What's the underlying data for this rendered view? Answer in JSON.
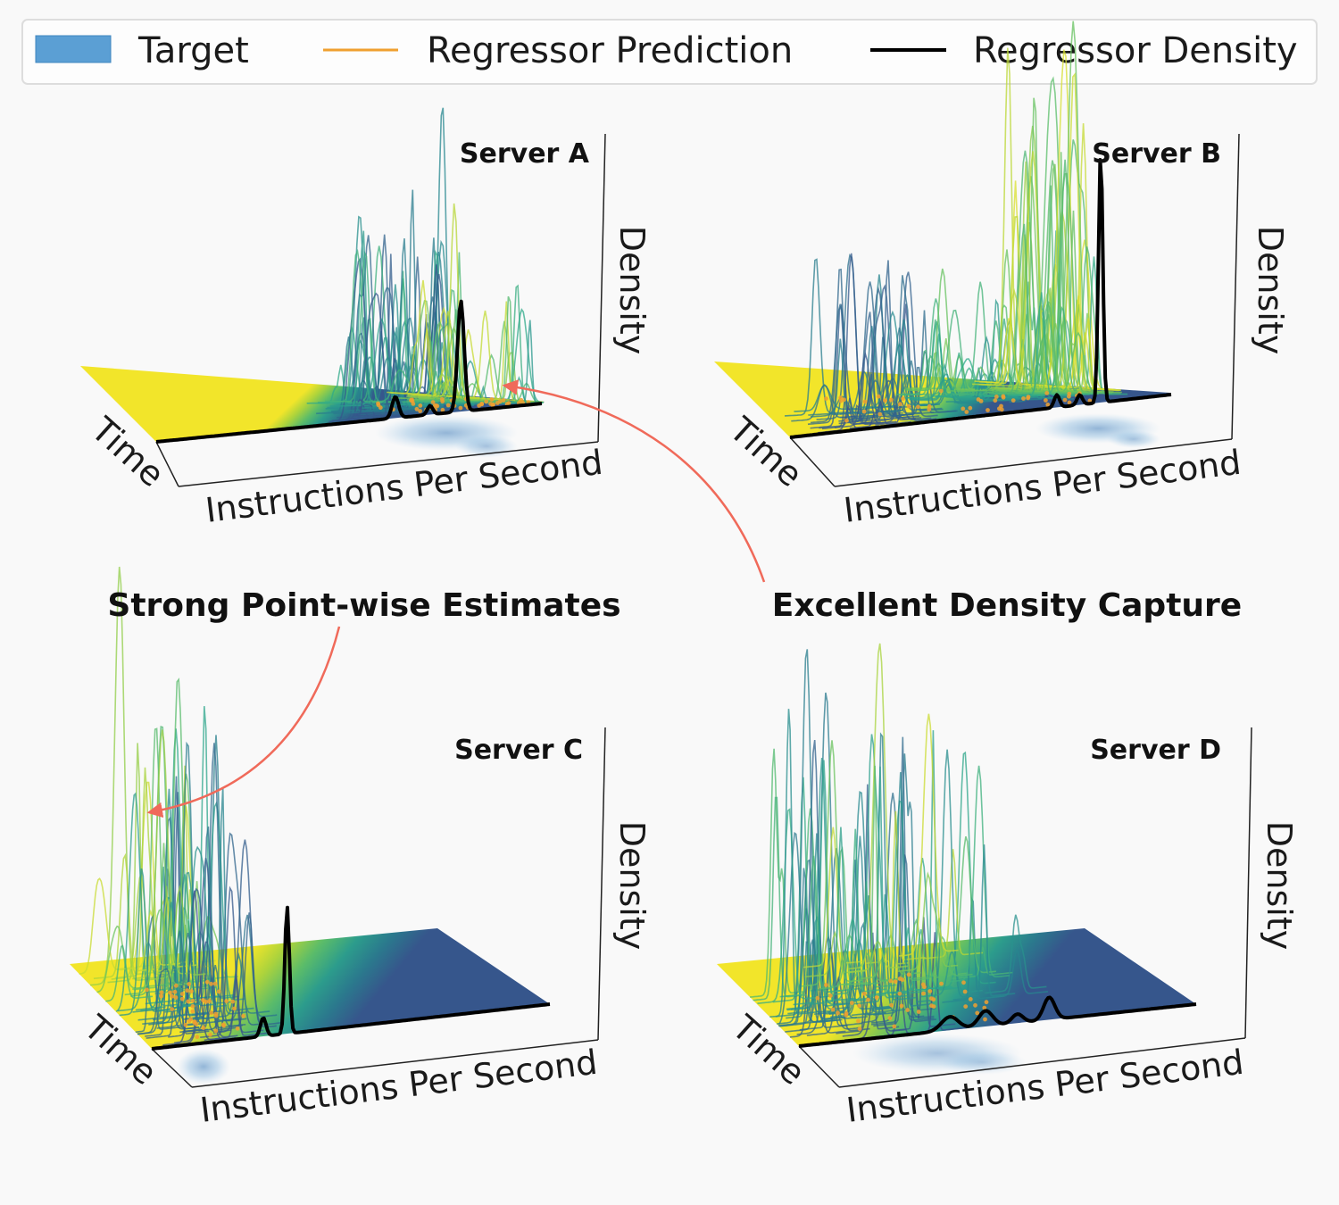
{
  "legend": {
    "items": [
      {
        "label": "Target",
        "kind": "patch",
        "color": "#5b9fd4"
      },
      {
        "label": "Regressor Prediction",
        "kind": "line",
        "color": "#f0a030"
      },
      {
        "label": "Regressor Density",
        "kind": "line",
        "color": "#000000"
      }
    ]
  },
  "annotations": {
    "left": "Strong Point-wise Estimates",
    "right": "Excellent Density Capture",
    "arrow_color": "#f06a5a"
  },
  "colormap": [
    "#f2e52a",
    "#b6d637",
    "#6cc45c",
    "#2fa98a",
    "#27898f",
    "#2e6b8c",
    "#3a4d8c"
  ],
  "chart_data": [
    {
      "type": "3d-ridgeline",
      "title": "Server A",
      "xlabel": "Instructions Per Second",
      "ylabel": "Time",
      "zlabel": "Density",
      "series": [
        {
          "name": "Regressor Density",
          "peaks": [
            {
              "x": 0.62,
              "height": 0.12,
              "width": 0.012
            },
            {
              "x": 0.71,
              "height": 0.05,
              "width": 0.01
            },
            {
              "x": 0.79,
              "height": 0.62,
              "width": 0.012
            }
          ]
        }
      ]
    },
    {
      "type": "3d-ridgeline",
      "title": "Server B",
      "xlabel": "Instructions Per Second",
      "ylabel": "Time",
      "zlabel": "Density",
      "series": [
        {
          "name": "Regressor Density",
          "peaks": [
            {
              "x": 0.7,
              "height": 0.05,
              "width": 0.01
            },
            {
              "x": 0.76,
              "height": 0.04,
              "width": 0.01
            },
            {
              "x": 0.815,
              "height": 1.0,
              "width": 0.008
            }
          ]
        }
      ]
    },
    {
      "type": "3d-ridgeline",
      "title": "Server C",
      "xlabel": "Instructions Per Second",
      "ylabel": "Time",
      "zlabel": "Density",
      "series": [
        {
          "name": "Regressor Density",
          "peaks": [
            {
              "x": 0.28,
              "height": 0.08,
              "width": 0.01
            },
            {
              "x": 0.34,
              "height": 0.55,
              "width": 0.008
            }
          ]
        }
      ]
    },
    {
      "type": "3d-ridgeline",
      "title": "Server D",
      "xlabel": "Instructions Per Second",
      "ylabel": "Time",
      "zlabel": "Density",
      "series": [
        {
          "name": "Regressor Density",
          "peaks": [
            {
              "x": 0.38,
              "height": 0.06,
              "width": 0.03
            },
            {
              "x": 0.47,
              "height": 0.07,
              "width": 0.025
            },
            {
              "x": 0.55,
              "height": 0.04,
              "width": 0.02
            },
            {
              "x": 0.63,
              "height": 0.1,
              "width": 0.02
            }
          ]
        }
      ]
    }
  ]
}
